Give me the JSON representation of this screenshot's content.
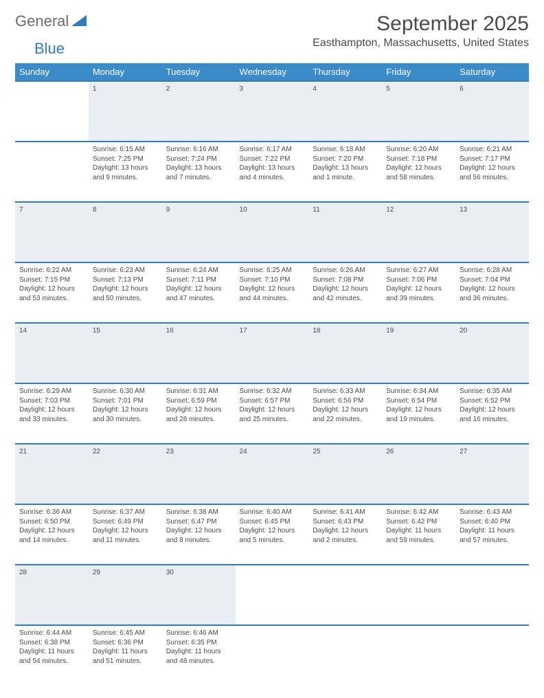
{
  "logo": {
    "text1": "General",
    "text2": "Blue"
  },
  "title": "September 2025",
  "location": "Easthampton, Massachusetts, United States",
  "colors": {
    "header_bg": "#3b8bc9",
    "border": "#2f7bbf",
    "daynum_bg": "#e9eef2",
    "text": "#4a4a4a"
  },
  "day_headers": [
    "Sunday",
    "Monday",
    "Tuesday",
    "Wednesday",
    "Thursday",
    "Friday",
    "Saturday"
  ],
  "weeks": [
    {
      "nums": [
        "",
        "1",
        "2",
        "3",
        "4",
        "5",
        "6"
      ],
      "cells": [
        {
          "sunrise": "",
          "sunset": "",
          "daylight": ""
        },
        {
          "sunrise": "Sunrise: 6:15 AM",
          "sunset": "Sunset: 7:25 PM",
          "daylight": "Daylight: 13 hours and 9 minutes."
        },
        {
          "sunrise": "Sunrise: 6:16 AM",
          "sunset": "Sunset: 7:24 PM",
          "daylight": "Daylight: 13 hours and 7 minutes."
        },
        {
          "sunrise": "Sunrise: 6:17 AM",
          "sunset": "Sunset: 7:22 PM",
          "daylight": "Daylight: 13 hours and 4 minutes."
        },
        {
          "sunrise": "Sunrise: 6:18 AM",
          "sunset": "Sunset: 7:20 PM",
          "daylight": "Daylight: 13 hours and 1 minute."
        },
        {
          "sunrise": "Sunrise: 6:20 AM",
          "sunset": "Sunset: 7:18 PM",
          "daylight": "Daylight: 12 hours and 58 minutes."
        },
        {
          "sunrise": "Sunrise: 6:21 AM",
          "sunset": "Sunset: 7:17 PM",
          "daylight": "Daylight: 12 hours and 56 minutes."
        }
      ]
    },
    {
      "nums": [
        "7",
        "8",
        "9",
        "10",
        "11",
        "12",
        "13"
      ],
      "cells": [
        {
          "sunrise": "Sunrise: 6:22 AM",
          "sunset": "Sunset: 7:15 PM",
          "daylight": "Daylight: 12 hours and 53 minutes."
        },
        {
          "sunrise": "Sunrise: 6:23 AM",
          "sunset": "Sunset: 7:13 PM",
          "daylight": "Daylight: 12 hours and 50 minutes."
        },
        {
          "sunrise": "Sunrise: 6:24 AM",
          "sunset": "Sunset: 7:11 PM",
          "daylight": "Daylight: 12 hours and 47 minutes."
        },
        {
          "sunrise": "Sunrise: 6:25 AM",
          "sunset": "Sunset: 7:10 PM",
          "daylight": "Daylight: 12 hours and 44 minutes."
        },
        {
          "sunrise": "Sunrise: 6:26 AM",
          "sunset": "Sunset: 7:08 PM",
          "daylight": "Daylight: 12 hours and 42 minutes."
        },
        {
          "sunrise": "Sunrise: 6:27 AM",
          "sunset": "Sunset: 7:06 PM",
          "daylight": "Daylight: 12 hours and 39 minutes."
        },
        {
          "sunrise": "Sunrise: 6:28 AM",
          "sunset": "Sunset: 7:04 PM",
          "daylight": "Daylight: 12 hours and 36 minutes."
        }
      ]
    },
    {
      "nums": [
        "14",
        "15",
        "16",
        "17",
        "18",
        "19",
        "20"
      ],
      "cells": [
        {
          "sunrise": "Sunrise: 6:29 AM",
          "sunset": "Sunset: 7:03 PM",
          "daylight": "Daylight: 12 hours and 33 minutes."
        },
        {
          "sunrise": "Sunrise: 6:30 AM",
          "sunset": "Sunset: 7:01 PM",
          "daylight": "Daylight: 12 hours and 30 minutes."
        },
        {
          "sunrise": "Sunrise: 6:31 AM",
          "sunset": "Sunset: 6:59 PM",
          "daylight": "Daylight: 12 hours and 28 minutes."
        },
        {
          "sunrise": "Sunrise: 6:32 AM",
          "sunset": "Sunset: 6:57 PM",
          "daylight": "Daylight: 12 hours and 25 minutes."
        },
        {
          "sunrise": "Sunrise: 6:33 AM",
          "sunset": "Sunset: 6:56 PM",
          "daylight": "Daylight: 12 hours and 22 minutes."
        },
        {
          "sunrise": "Sunrise: 6:34 AM",
          "sunset": "Sunset: 6:54 PM",
          "daylight": "Daylight: 12 hours and 19 minutes."
        },
        {
          "sunrise": "Sunrise: 6:35 AM",
          "sunset": "Sunset: 6:52 PM",
          "daylight": "Daylight: 12 hours and 16 minutes."
        }
      ]
    },
    {
      "nums": [
        "21",
        "22",
        "23",
        "24",
        "25",
        "26",
        "27"
      ],
      "cells": [
        {
          "sunrise": "Sunrise: 6:36 AM",
          "sunset": "Sunset: 6:50 PM",
          "daylight": "Daylight: 12 hours and 14 minutes."
        },
        {
          "sunrise": "Sunrise: 6:37 AM",
          "sunset": "Sunset: 6:49 PM",
          "daylight": "Daylight: 12 hours and 11 minutes."
        },
        {
          "sunrise": "Sunrise: 6:38 AM",
          "sunset": "Sunset: 6:47 PM",
          "daylight": "Daylight: 12 hours and 8 minutes."
        },
        {
          "sunrise": "Sunrise: 6:40 AM",
          "sunset": "Sunset: 6:45 PM",
          "daylight": "Daylight: 12 hours and 5 minutes."
        },
        {
          "sunrise": "Sunrise: 6:41 AM",
          "sunset": "Sunset: 6:43 PM",
          "daylight": "Daylight: 12 hours and 2 minutes."
        },
        {
          "sunrise": "Sunrise: 6:42 AM",
          "sunset": "Sunset: 6:42 PM",
          "daylight": "Daylight: 11 hours and 59 minutes."
        },
        {
          "sunrise": "Sunrise: 6:43 AM",
          "sunset": "Sunset: 6:40 PM",
          "daylight": "Daylight: 11 hours and 57 minutes."
        }
      ]
    },
    {
      "nums": [
        "28",
        "29",
        "30",
        "",
        "",
        "",
        ""
      ],
      "cells": [
        {
          "sunrise": "Sunrise: 6:44 AM",
          "sunset": "Sunset: 6:38 PM",
          "daylight": "Daylight: 11 hours and 54 minutes."
        },
        {
          "sunrise": "Sunrise: 6:45 AM",
          "sunset": "Sunset: 6:36 PM",
          "daylight": "Daylight: 11 hours and 51 minutes."
        },
        {
          "sunrise": "Sunrise: 6:46 AM",
          "sunset": "Sunset: 6:35 PM",
          "daylight": "Daylight: 11 hours and 48 minutes."
        },
        {
          "sunrise": "",
          "sunset": "",
          "daylight": ""
        },
        {
          "sunrise": "",
          "sunset": "",
          "daylight": ""
        },
        {
          "sunrise": "",
          "sunset": "",
          "daylight": ""
        },
        {
          "sunrise": "",
          "sunset": "",
          "daylight": ""
        }
      ]
    }
  ]
}
